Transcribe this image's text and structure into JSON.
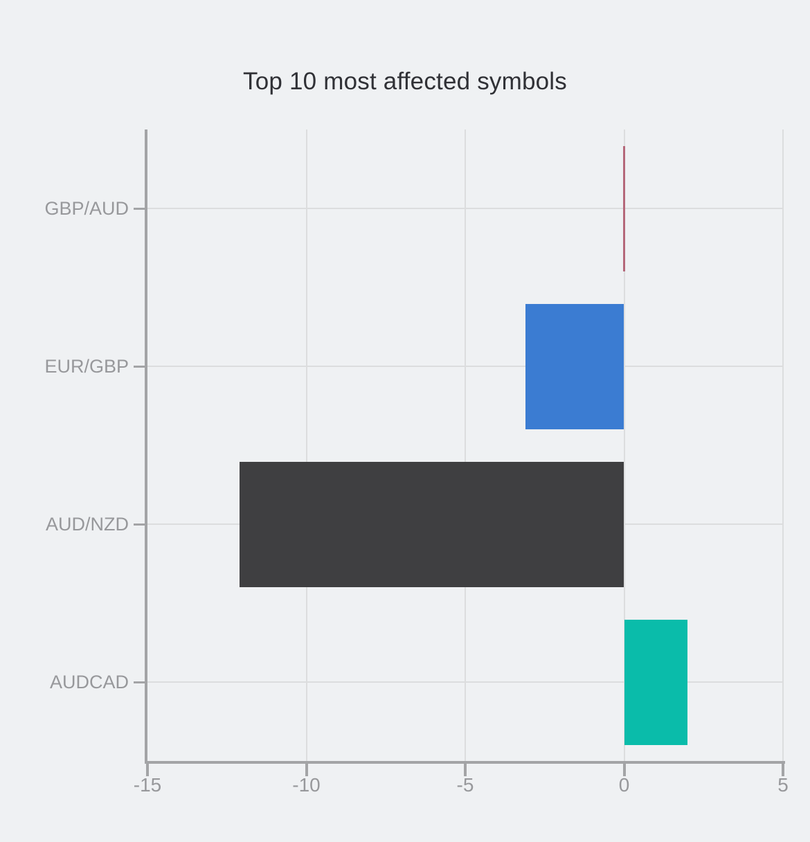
{
  "page": {
    "background_color": "#eff1f3"
  },
  "chart_data": {
    "type": "bar",
    "orientation": "horizontal",
    "title": "Top 10 most affected symbols",
    "categories": [
      "GBP/AUD",
      "EUR/GBP",
      "AUD/NZD",
      "AUDCAD"
    ],
    "values": [
      0.05,
      -3.1,
      -12.1,
      2.0
    ],
    "bar_colors": [
      "#b5687a",
      "#3b7cd2",
      "#3f3f41",
      "#0abcaa"
    ],
    "x_ticks": [
      -15,
      -10,
      -5,
      0,
      5
    ],
    "x_tick_labels": [
      "-15",
      "-10",
      "-5",
      "0",
      "5"
    ],
    "xlim": [
      -15,
      5
    ],
    "xlabel": "",
    "ylabel": "",
    "grid": true,
    "legend_position": "none",
    "colors": {
      "axis_spine": "#a3a4a6",
      "tick_mark": "#a3a4a6",
      "gridline": "#dcddde",
      "axis_label_text": "#97989b",
      "title_text": "#303136"
    }
  }
}
